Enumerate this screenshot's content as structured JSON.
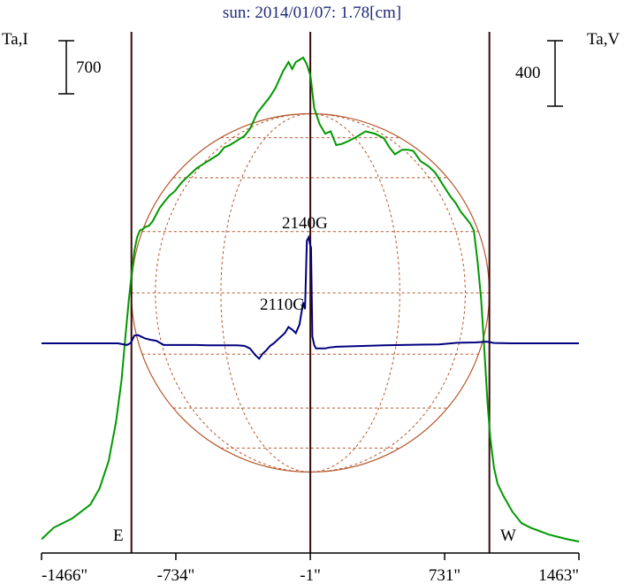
{
  "chart_data": {
    "type": "line",
    "title": "sun: 2014/01/07: 1.78[cm]",
    "left_axis_label": "Ta,I",
    "right_axis_label": "Ta,V",
    "left_scale_bar": "700",
    "right_scale_bar": "400",
    "x_unit": "arcsec",
    "x_ticks": [
      -1466,
      -734,
      -1,
      731,
      1463
    ],
    "x_tick_labels": [
      "-1466\"",
      "-734\"",
      "-1\"",
      "731\"",
      "1463\""
    ],
    "xlim": [
      -1466,
      1463
    ],
    "limb_markers": [
      {
        "label": "E",
        "x": -976
      },
      {
        "label": "W",
        "x": 975
      }
    ],
    "center_line_x": -1,
    "annotations": [
      {
        "text": "2140G",
        "x": -1
      },
      {
        "text": "2110G",
        "x": -125
      }
    ],
    "colors": {
      "ta_i": "#009900",
      "ta_v": "#000080",
      "disk": "#b5562a",
      "markers": "#3a0a0a",
      "axis": "#000000",
      "title": "#1e2a78"
    },
    "ta_i_ylim": [
      0,
      2100
    ],
    "ta_v_ylim": [
      -900,
      800
    ],
    "series": [
      {
        "key": "ta_i",
        "x": [
          -1466,
          -1400,
          -1300,
          -1200,
          -1150,
          -1100,
          -1060,
          -1030,
          -1010,
          -990,
          -975,
          -960,
          -945,
          -930,
          -915,
          -900,
          -880,
          -860,
          -840,
          -820,
          -800,
          -770,
          -740,
          -700,
          -660,
          -620,
          -580,
          -540,
          -500,
          -470,
          -440,
          -400,
          -360,
          -330,
          -290,
          -250,
          -220,
          -190,
          -150,
          -120,
          -100,
          -80,
          -60,
          -40,
          -20,
          0,
          20,
          50,
          80,
          110,
          140,
          170,
          200,
          250,
          300,
          350,
          400,
          430,
          460,
          500,
          530,
          560,
          600,
          640,
          680,
          720,
          760,
          790,
          820,
          850,
          870,
          890,
          910,
          930,
          950,
          965,
          980,
          1000,
          1020,
          1050,
          1100,
          1150,
          1200,
          1300,
          1400,
          1463
        ],
        "y": [
          10,
          60,
          100,
          160,
          230,
          350,
          520,
          700,
          880,
          1050,
          1160,
          1260,
          1320,
          1350,
          1355,
          1365,
          1370,
          1390,
          1420,
          1450,
          1470,
          1500,
          1520,
          1560,
          1590,
          1620,
          1640,
          1660,
          1680,
          1710,
          1720,
          1740,
          1760,
          1790,
          1860,
          1900,
          1930,
          1970,
          2040,
          2080,
          2050,
          2080,
          2090,
          2100,
          2070,
          2020,
          1880,
          1810,
          1770,
          1780,
          1720,
          1725,
          1735,
          1755,
          1780,
          1770,
          1750,
          1710,
          1680,
          1700,
          1700,
          1695,
          1650,
          1630,
          1600,
          1550,
          1500,
          1470,
          1430,
          1400,
          1380,
          1350,
          1220,
          1050,
          800,
          600,
          450,
          320,
          250,
          200,
          130,
          80,
          60,
          30,
          10,
          0
        ]
      },
      {
        "key": "ta_v",
        "x": [
          -1466,
          -1200,
          -1050,
          -1000,
          -980,
          -960,
          -940,
          -920,
          -900,
          -870,
          -840,
          -800,
          -740,
          -680,
          -620,
          -560,
          -500,
          -440,
          -400,
          -360,
          -330,
          -300,
          -280,
          -260,
          -240,
          -220,
          -200,
          -180,
          -160,
          -140,
          -120,
          -100,
          -80,
          -60,
          -40,
          -30,
          -20,
          -10,
          -3,
          3,
          10,
          20,
          30,
          40,
          60,
          80,
          100,
          140,
          200,
          300,
          400,
          500,
          600,
          700,
          800,
          900,
          960,
          1000,
          1100,
          1300,
          1463
        ],
        "y": [
          0,
          0,
          0,
          -10,
          2,
          45,
          48,
          38,
          28,
          20,
          15,
          -10,
          -10,
          -10,
          -10,
          -12,
          -12,
          -12,
          -12,
          -15,
          -30,
          -70,
          -90,
          -60,
          -40,
          -15,
          0,
          20,
          40,
          60,
          95,
          80,
          60,
          110,
          240,
          200,
          600,
          620,
          580,
          560,
          40,
          -10,
          -30,
          -30,
          -30,
          -30,
          -25,
          -20,
          -18,
          -15,
          -12,
          -10,
          -8,
          -6,
          3,
          5,
          10,
          2,
          0,
          0,
          0
        ]
      }
    ]
  }
}
